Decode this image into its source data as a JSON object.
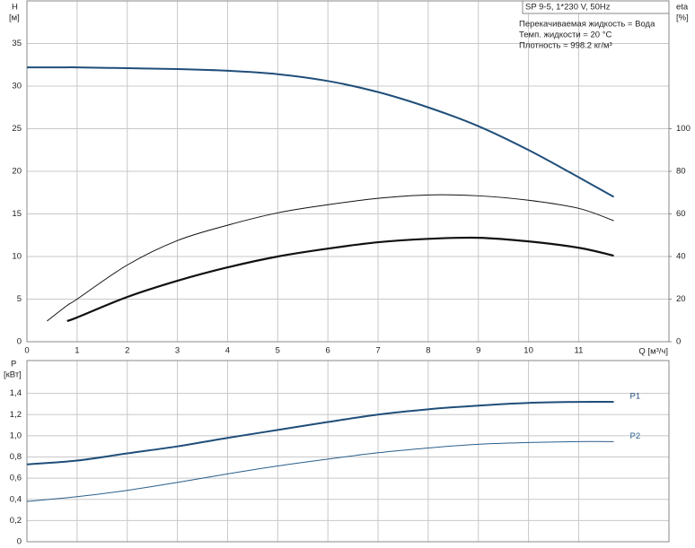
{
  "chart_data": [
    {
      "type": "line",
      "title": "SP 9-5, 1*230 V, 50Hz",
      "annotations": [
        "Перекачиваемая жидкость = Вода",
        "Темп. жидкости = 20 °C",
        "Плотность = 998.2 кг/м³"
      ],
      "y_label": "H",
      "y_unit": "[м]",
      "y2_label": "eta",
      "y2_unit": "[%]",
      "x_label": "Q [м³/ч]",
      "x": [
        0,
        0.4,
        0.8,
        1,
        2,
        3,
        4,
        5,
        6,
        7,
        8,
        9,
        10,
        11,
        11.7
      ],
      "series": [
        {
          "color": "#1f4e79",
          "width": 2,
          "values": [
            32.2,
            32.2,
            32.2,
            32.2,
            32.1,
            32.0,
            31.8,
            31.4,
            30.6,
            29.3,
            27.5,
            25.3,
            22.5,
            19.3,
            17.0
          ]
        },
        {
          "color": "#111111",
          "width": 1,
          "axis": "y2",
          "values": [
            null,
            9.7,
            17,
            20,
            36,
            47.5,
            54.7,
            60.5,
            64.3,
            67.3,
            68.9,
            68.5,
            66.4,
            62.6,
            56.8
          ]
        },
        {
          "color": "#111111",
          "width": 2.2,
          "axis": "y2",
          "values": [
            null,
            null,
            9.7,
            11.4,
            21,
            28.6,
            34.9,
            40,
            43.7,
            46.7,
            48.3,
            48.8,
            47.1,
            44.1,
            40.4
          ]
        }
      ],
      "xlim": [
        0,
        12.8
      ],
      "xticks": [
        0,
        1,
        2,
        3,
        4,
        5,
        6,
        7,
        8,
        9,
        10,
        11
      ],
      "ylim": [
        0,
        40
      ],
      "yticks": [
        0,
        5,
        10,
        15,
        20,
        25,
        30,
        35
      ],
      "y2lim": [
        0,
        160
      ],
      "y2ticks": [
        0,
        20,
        40,
        60,
        80,
        100
      ],
      "grid": true
    },
    {
      "type": "line",
      "y_label": "P",
      "y_unit": "[кВт]",
      "x": [
        0,
        1,
        2,
        3,
        4,
        5,
        6,
        7,
        8,
        9,
        10,
        11,
        11.7
      ],
      "series": [
        {
          "name": "P1",
          "color": "#1f4e79",
          "width": 2,
          "values": [
            0.73,
            0.766,
            0.834,
            0.9,
            0.98,
            1.055,
            1.13,
            1.2,
            1.25,
            1.285,
            1.31,
            1.32,
            1.32
          ]
        },
        {
          "name": "P2",
          "color": "#2a5f8a",
          "width": 1,
          "values": [
            0.38,
            0.425,
            0.485,
            0.56,
            0.64,
            0.715,
            0.78,
            0.84,
            0.885,
            0.92,
            0.936,
            0.945,
            0.945
          ]
        }
      ],
      "xlim": [
        0,
        12.8
      ],
      "xticks": [
        0,
        1,
        2,
        3,
        4,
        5,
        6,
        7,
        8,
        9,
        10,
        11
      ],
      "ylim": [
        0,
        1.71
      ],
      "yticks": [
        0,
        {
          "value": 0.2,
          "label": "0,2"
        },
        {
          "value": 0.4,
          "label": "0,4"
        },
        {
          "value": 0.6,
          "label": "0,6"
        },
        {
          "value": 0.8,
          "label": "0,8"
        },
        {
          "value": 1.0,
          "label": "1,0"
        },
        {
          "value": 1.2,
          "label": "1,2"
        },
        {
          "value": 1.4,
          "label": "1,4"
        }
      ],
      "grid": true
    }
  ]
}
